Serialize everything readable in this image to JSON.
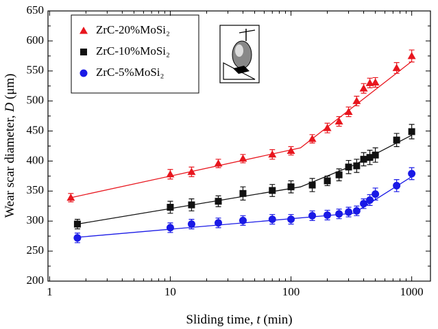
{
  "chart_data": {
    "type": "scatter",
    "x_label": [
      "Sliding time, ",
      "t",
      " (min)"
    ],
    "y_label": [
      "Wear scar diameter, ",
      "D",
      " (μm)"
    ],
    "xscale": "log",
    "xlim": [
      0.97,
      1430
    ],
    "xticks": [
      1,
      10,
      100,
      1000
    ],
    "xminorticks": [
      2,
      3,
      4,
      5,
      6,
      7,
      8,
      9,
      20,
      30,
      40,
      50,
      60,
      70,
      80,
      90,
      200,
      300,
      400,
      500,
      600,
      700,
      800,
      900
    ],
    "ylim": [
      200,
      650
    ],
    "yticks": [
      200,
      250,
      300,
      350,
      400,
      450,
      500,
      550,
      600,
      650
    ],
    "yminorticks": [
      225,
      275,
      325,
      375,
      425,
      475,
      525,
      575,
      625
    ],
    "legend": "upper left",
    "series": [
      {
        "name": "ZrC-20%MoSi₂",
        "color": "#e8161e",
        "marker": "triangle",
        "x": [
          1.5,
          10,
          15,
          25,
          40,
          70,
          100,
          150,
          200,
          250,
          300,
          350,
          400,
          450,
          500,
          750,
          1000
        ],
        "values": [
          339,
          378,
          382,
          396,
          404,
          411,
          417,
          437,
          455,
          466,
          482,
          500,
          521,
          530,
          531,
          555,
          575
        ],
        "errors": [
          7,
          8,
          8,
          7,
          7,
          8,
          7,
          7,
          8,
          8,
          8,
          8,
          8,
          8,
          8,
          9,
          10
        ],
        "fit": {
          "x": [
            1.5,
            120,
            1000
          ],
          "values": [
            339,
            422,
            566
          ]
        }
      },
      {
        "name": "ZrC-10%MoSi₂",
        "color": "#111111",
        "marker": "square",
        "x": [
          1.7,
          10,
          15,
          25,
          40,
          70,
          100,
          150,
          200,
          250,
          300,
          350,
          400,
          450,
          500,
          750,
          1000
        ],
        "values": [
          295,
          323,
          327,
          333,
          346,
          351,
          357,
          360,
          367,
          377,
          390,
          392,
          403,
          406,
          410,
          435,
          449
        ],
        "errors": [
          8,
          10,
          10,
          9,
          11,
          10,
          10,
          11,
          8,
          10,
          11,
          11,
          11,
          12,
          12,
          11,
          12
        ],
        "fit": {
          "x": [
            1.7,
            120,
            330,
            1000
          ],
          "values": [
            295,
            357,
            393,
            443
          ]
        }
      },
      {
        "name": "ZrC-5%MoSi₂",
        "color": "#1a1ae6",
        "marker": "circle",
        "x": [
          1.7,
          10,
          15,
          25,
          40,
          70,
          100,
          150,
          200,
          250,
          300,
          350,
          400,
          450,
          500,
          750,
          1000
        ],
        "values": [
          272,
          289,
          295,
          297,
          301,
          303,
          303,
          309,
          310,
          312,
          315,
          317,
          329,
          335,
          345,
          359,
          379
        ],
        "errors": [
          8,
          8,
          8,
          8,
          8,
          8,
          8,
          8,
          8,
          8,
          8,
          8,
          8,
          9,
          10,
          10,
          10
        ],
        "fit": {
          "x": [
            1.7,
            330,
            1000
          ],
          "values": [
            273,
            313,
            374
          ]
        }
      }
    ]
  }
}
